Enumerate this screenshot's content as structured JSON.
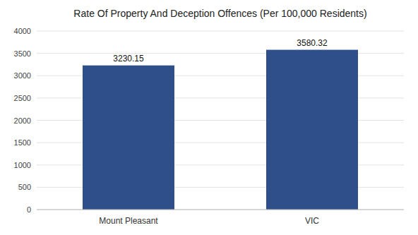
{
  "chart_data": {
    "type": "bar",
    "title": "Rate Of Property And Deception Offences (Per 100,000 Residents)",
    "categories": [
      "Mount Pleasant",
      "VIC"
    ],
    "values": [
      3230.15,
      3580.32
    ],
    "color": "#2e4f8a",
    "ylim": [
      0,
      4000
    ],
    "yticks": [
      0,
      500,
      1000,
      1500,
      2000,
      2500,
      3000,
      3500,
      4000
    ],
    "grid": true,
    "data_labels": true
  }
}
